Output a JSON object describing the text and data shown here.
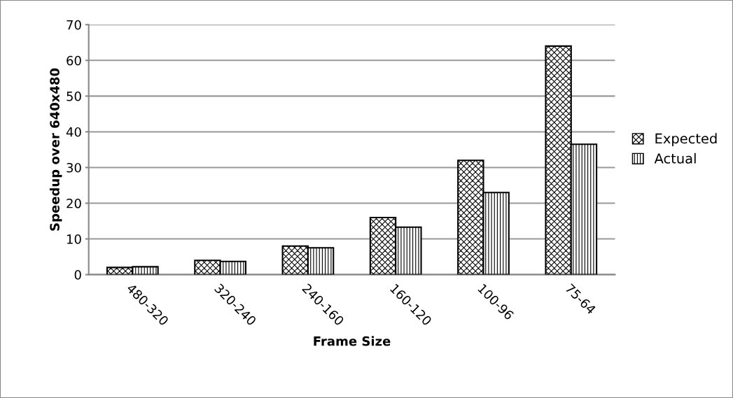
{
  "chart_data": {
    "type": "bar",
    "xlabel": "Frame Size",
    "ylabel": "Speedup over 640x480",
    "categories": [
      "480-320",
      "320-240",
      "240-160",
      "160-120",
      "100-96",
      "75-64"
    ],
    "series": [
      {
        "name": "Expected",
        "color": "#000000",
        "values": [
          2,
          4,
          8,
          16,
          32,
          64
        ]
      },
      {
        "name": "Actual",
        "color": "#000000",
        "values": [
          2.2,
          3.7,
          7.5,
          13.3,
          23,
          36.5
        ]
      }
    ],
    "ylim": [
      0,
      70
    ],
    "yticks": [
      0,
      10,
      20,
      30,
      40,
      50,
      60,
      70
    ],
    "grid": "y",
    "legend": "right"
  }
}
